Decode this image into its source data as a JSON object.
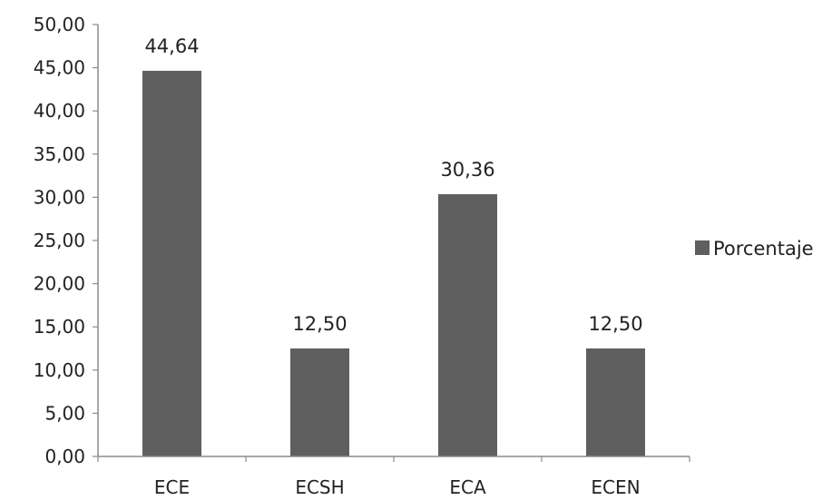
{
  "chart_data": {
    "type": "bar",
    "categories": [
      "ECE",
      "ECSH",
      "ECA",
      "ECEN"
    ],
    "series": [
      {
        "name": "Porcentaje",
        "values": [
          44.64,
          12.5,
          30.36,
          12.5
        ],
        "value_labels": [
          "44,64",
          "12,50",
          "30,36",
          "12,50"
        ],
        "color": "#5f5f5f"
      }
    ],
    "title": "",
    "xlabel": "",
    "ylabel": "",
    "ylim": [
      0,
      50
    ],
    "y_ticks": [
      0,
      5,
      10,
      15,
      20,
      25,
      30,
      35,
      40,
      45,
      50
    ],
    "y_tick_labels": [
      "0,00",
      "5,00",
      "10,00",
      "15,00",
      "20,00",
      "25,00",
      "30,00",
      "35,00",
      "40,00",
      "45,00",
      "50,00"
    ],
    "grid": false,
    "legend_position": "right",
    "axis_color": "#8c8c8c"
  }
}
